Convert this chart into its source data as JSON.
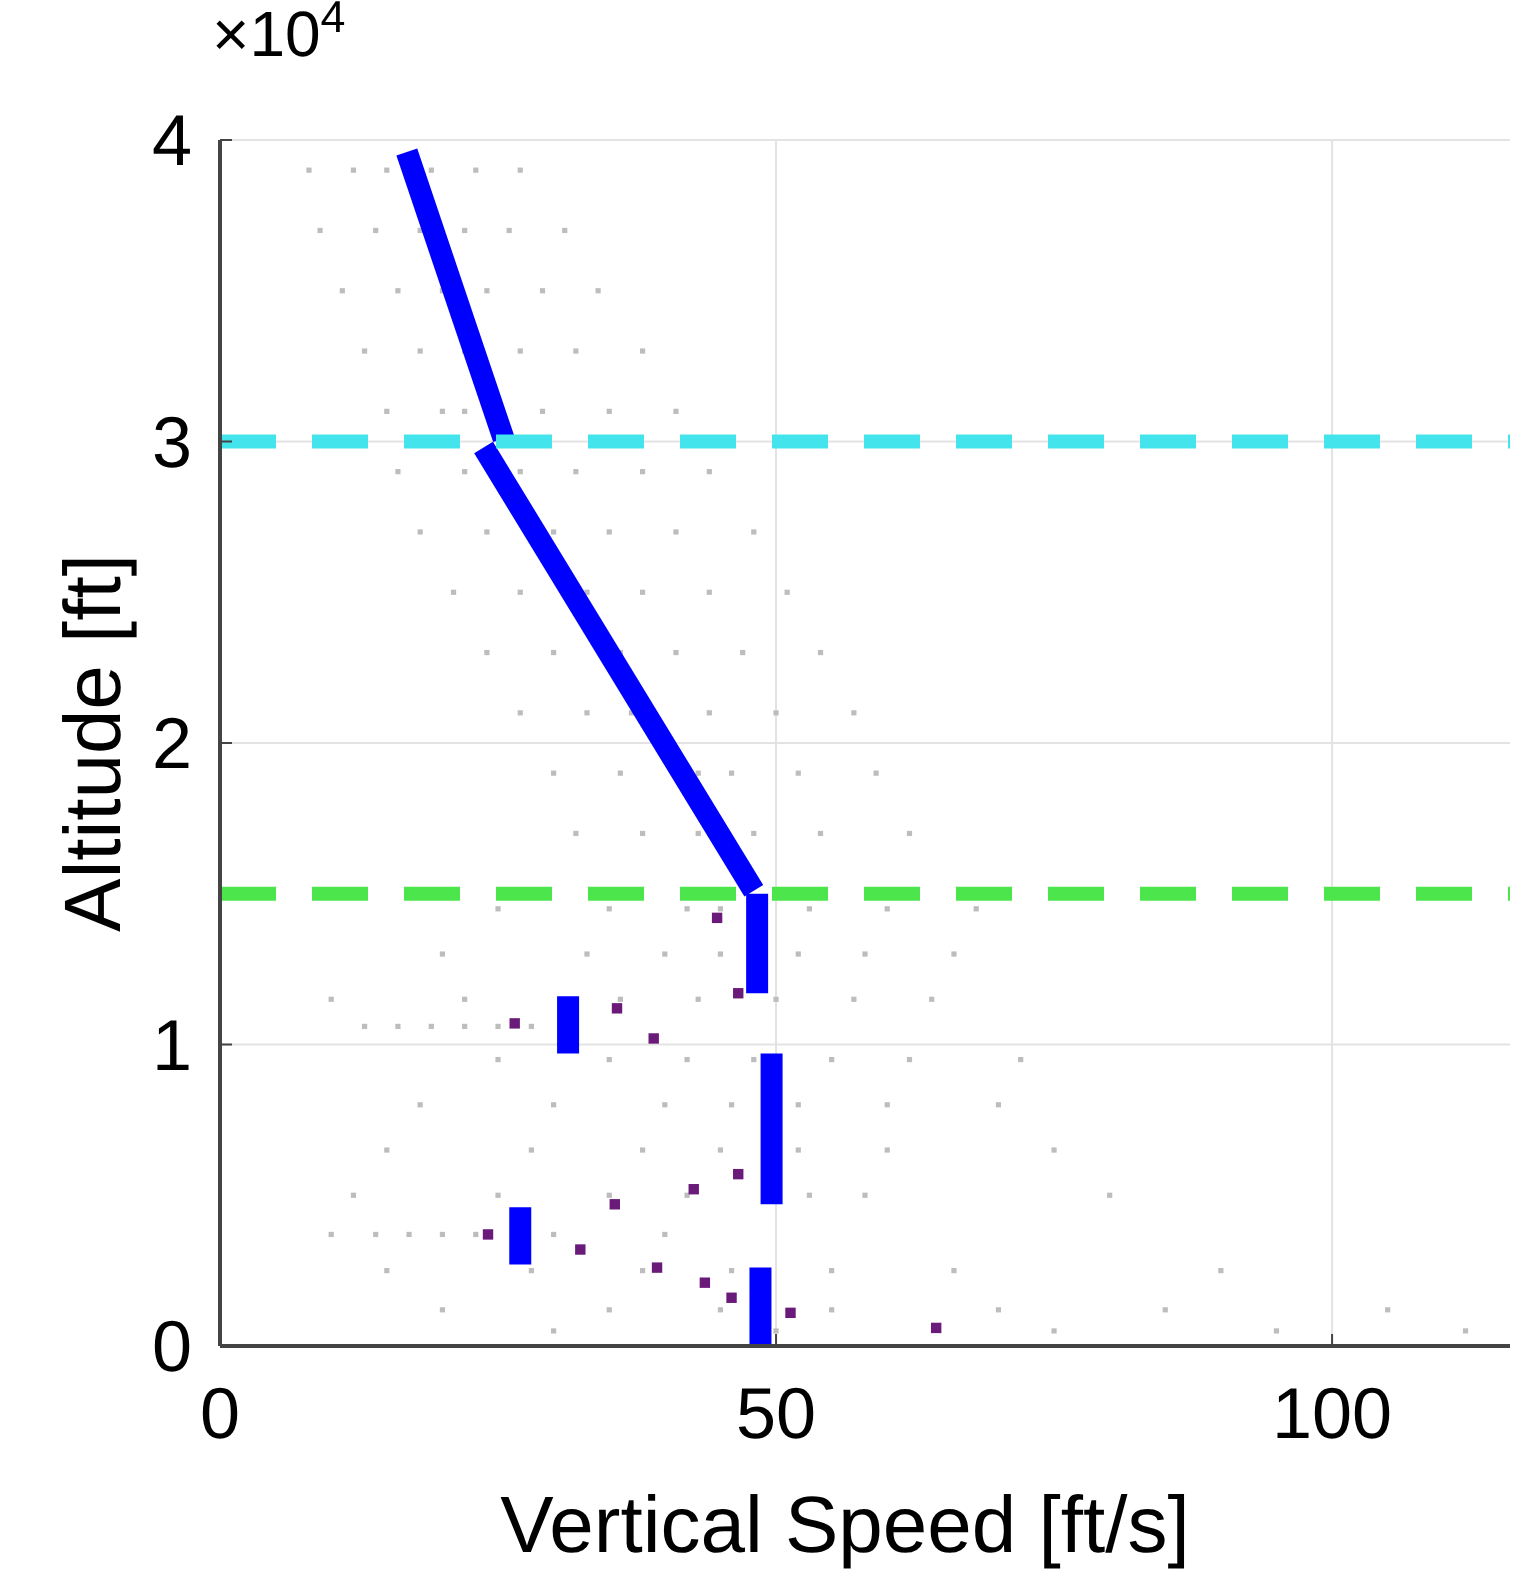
{
  "chart_data": {
    "type": "scatter",
    "xlabel": "Vertical Speed [ft/s]",
    "ylabel": "Altitude [ft]",
    "annotations": [
      "×10$^{4}$"
    ],
    "xlim": [
      0,
      116
    ],
    "ylim": [
      0,
      4
    ],
    "xticks": [
      0,
      50,
      100
    ],
    "yticks": [
      0,
      1,
      2,
      3,
      4
    ],
    "grid": true,
    "ref_lines": [
      {
        "axis": "y",
        "value": 3,
        "label": null,
        "color": "#44e4ec",
        "line_style": "dashed"
      },
      {
        "axis": "y",
        "value": 1.5,
        "label": null,
        "color": "#4ce64c",
        "line_style": "dashed"
      }
    ],
    "series": [
      {
        "marker": "square",
        "color": "#bdbdbd",
        "x": [
          8,
          12,
          15,
          19,
          23,
          27,
          9,
          14,
          18,
          22,
          26,
          31,
          11,
          16,
          20,
          24,
          29,
          34,
          13,
          18,
          22,
          27,
          32,
          38,
          15,
          20,
          22,
          29,
          35,
          41,
          16,
          22,
          27,
          32,
          38,
          44,
          18,
          24,
          30,
          35,
          41,
          48,
          21,
          27,
          33,
          38,
          44,
          51,
          24,
          30,
          36,
          41,
          47,
          54,
          27,
          33,
          37,
          44,
          50,
          57,
          30,
          36,
          43,
          46,
          52,
          59,
          32,
          38,
          43,
          48,
          54,
          62,
          25,
          35,
          42,
          45,
          53,
          60,
          68,
          20,
          33,
          40,
          45,
          52,
          58,
          66,
          10,
          22,
          36,
          43,
          50,
          57,
          64,
          13,
          16,
          19,
          22,
          25,
          28,
          25,
          35,
          42,
          48,
          55,
          62,
          72,
          18,
          30,
          40,
          46,
          52,
          60,
          70,
          15,
          28,
          38,
          45,
          52,
          60,
          75,
          12,
          25,
          35,
          42,
          53,
          58,
          80,
          10,
          14,
          17,
          20,
          23,
          30,
          40,
          15,
          28,
          38,
          46,
          55,
          66,
          90,
          20,
          35,
          45,
          55,
          70,
          85,
          105,
          30,
          50,
          75,
          95,
          112
        ],
        "values": [
          3.9,
          3.9,
          3.9,
          3.9,
          3.9,
          3.9,
          3.7,
          3.7,
          3.7,
          3.7,
          3.7,
          3.7,
          3.5,
          3.5,
          3.5,
          3.5,
          3.5,
          3.5,
          3.3,
          3.3,
          3.3,
          3.3,
          3.3,
          3.3,
          3.1,
          3.1,
          3.1,
          3.1,
          3.1,
          3.1,
          2.9,
          2.9,
          2.9,
          2.9,
          2.9,
          2.9,
          2.7,
          2.7,
          2.7,
          2.7,
          2.7,
          2.7,
          2.5,
          2.5,
          2.5,
          2.5,
          2.5,
          2.5,
          2.3,
          2.3,
          2.3,
          2.3,
          2.3,
          2.3,
          2.1,
          2.1,
          2.1,
          2.1,
          2.1,
          2.1,
          1.9,
          1.9,
          1.9,
          1.9,
          1.9,
          1.9,
          1.7,
          1.7,
          1.7,
          1.7,
          1.7,
          1.7,
          1.45,
          1.45,
          1.45,
          1.45,
          1.45,
          1.45,
          1.45,
          1.3,
          1.3,
          1.3,
          1.3,
          1.3,
          1.3,
          1.3,
          1.15,
          1.15,
          1.15,
          1.15,
          1.15,
          1.15,
          1.15,
          1.06,
          1.06,
          1.06,
          1.06,
          1.06,
          1.06,
          0.95,
          0.95,
          0.95,
          0.95,
          0.95,
          0.95,
          0.95,
          0.8,
          0.8,
          0.8,
          0.8,
          0.8,
          0.8,
          0.8,
          0.65,
          0.65,
          0.65,
          0.65,
          0.65,
          0.65,
          0.65,
          0.5,
          0.5,
          0.5,
          0.5,
          0.5,
          0.5,
          0.5,
          0.37,
          0.37,
          0.37,
          0.37,
          0.37,
          0.37,
          0.37,
          0.25,
          0.25,
          0.25,
          0.25,
          0.25,
          0.25,
          0.25,
          0.12,
          0.12,
          0.12,
          0.12,
          0.12,
          0.12,
          0.12,
          0.05,
          0.05,
          0.05,
          0.05,
          0.05
        ]
      },
      {
        "type": "line",
        "color": "#0000ff",
        "x": [
          16.8,
          25.5
        ],
        "values": [
          3.96,
          3.01
        ]
      },
      {
        "type": "line",
        "color": "#0000ff",
        "x": [
          23.7,
          48.0
        ],
        "values": [
          2.98,
          1.51
        ]
      },
      {
        "type": "line",
        "color": "#0000ff",
        "x": [
          48.3,
          48.3
        ],
        "values": [
          1.5,
          1.17
        ]
      },
      {
        "type": "line",
        "color": "#0000ff",
        "x": [
          31.3,
          31.3
        ],
        "values": [
          1.16,
          0.97
        ]
      },
      {
        "type": "line",
        "color": "#0000ff",
        "x": [
          49.6,
          49.6
        ],
        "values": [
          0.97,
          0.47
        ]
      },
      {
        "type": "line",
        "color": "#0000ff",
        "x": [
          27.0,
          27.0
        ],
        "values": [
          0.46,
          0.27
        ]
      },
      {
        "type": "line",
        "color": "#0000ff",
        "x": [
          48.6,
          48.6
        ],
        "values": [
          0.26,
          0
        ]
      },
      {
        "marker": "square",
        "color": "#6a1b7a",
        "x": [
          44.7,
          46.6,
          26.5,
          35.7,
          39.0,
          46.6,
          42.6,
          35.5,
          24.1,
          32.4,
          39.3,
          43.6,
          46.0,
          51.3,
          64.4
        ],
        "values": [
          1.42,
          1.17,
          1.07,
          1.12,
          1.02,
          0.57,
          0.52,
          0.47,
          0.37,
          0.32,
          0.26,
          0.21,
          0.16,
          0.11,
          0.06
        ]
      }
    ]
  }
}
